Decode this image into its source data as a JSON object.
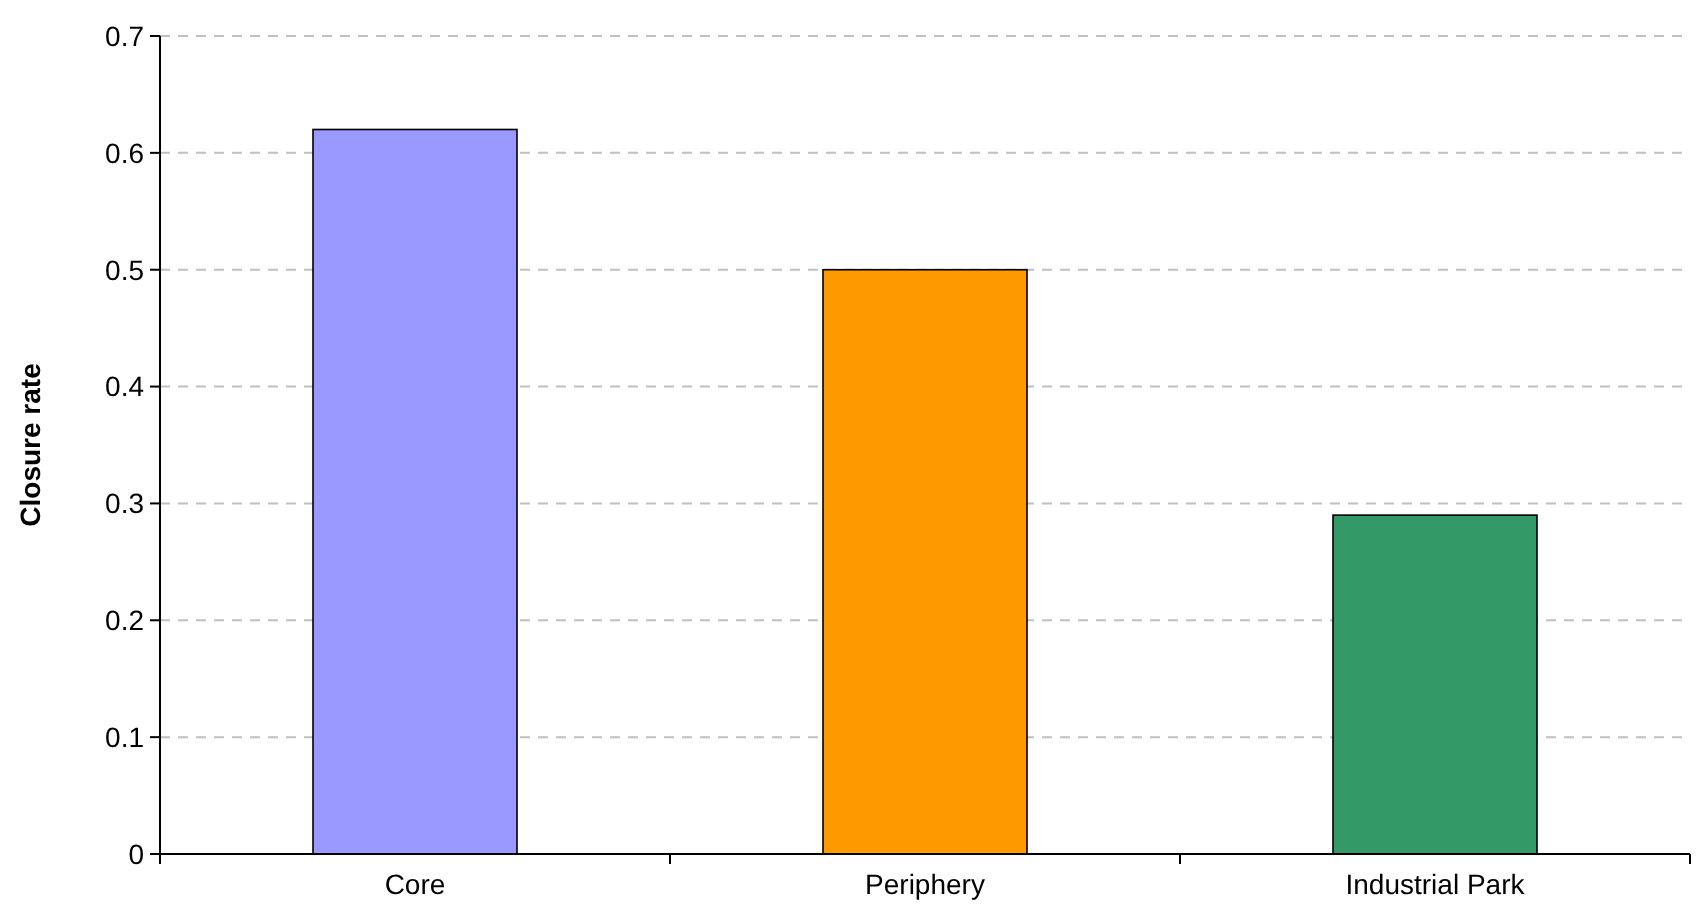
{
  "chart_data": {
    "type": "bar",
    "ylabel": "Closure rate",
    "categories": [
      "Core",
      "Periphery",
      "Industrial Park"
    ],
    "values": [
      0.62,
      0.5,
      0.29
    ],
    "colors": [
      "#9999ff",
      "#ff9900",
      "#339966"
    ],
    "ylim": [
      0,
      0.7
    ],
    "yticks": [
      0,
      0.1,
      0.2,
      0.3,
      0.4,
      0.5,
      0.6,
      0.7
    ],
    "grid": "y"
  }
}
